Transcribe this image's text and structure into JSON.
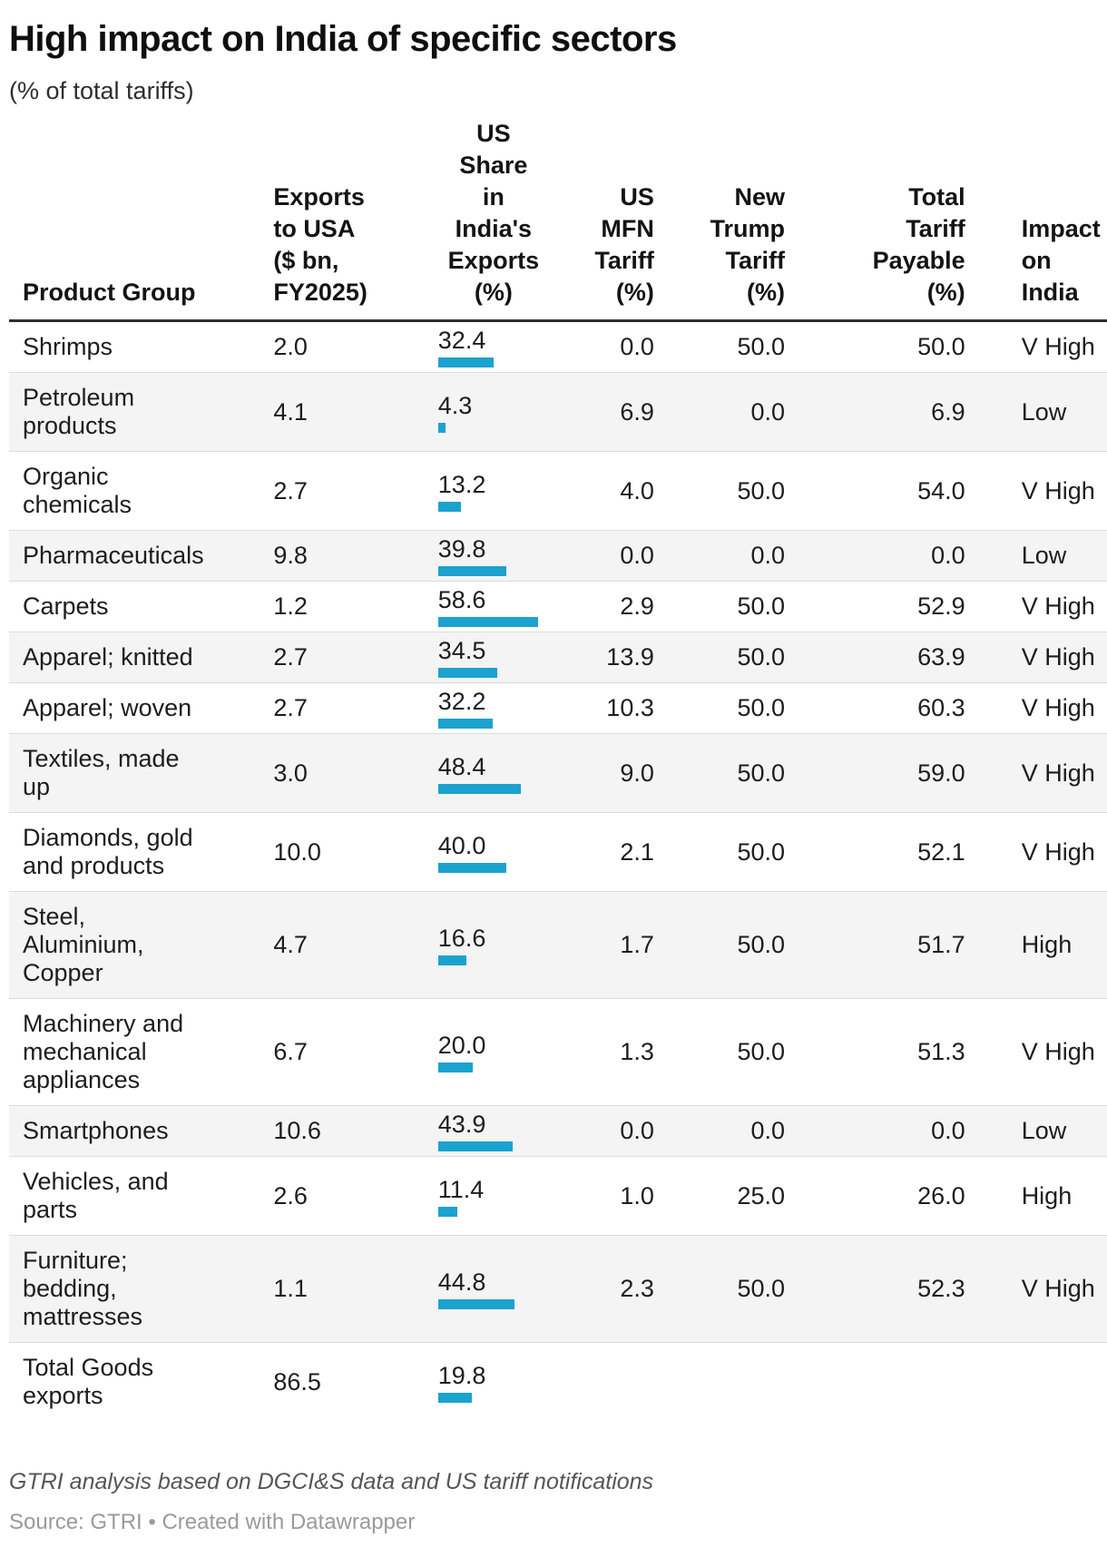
{
  "header": {
    "title": "High impact on India of specific sectors",
    "subtitle": "(% of total tariffs)"
  },
  "chart_data": {
    "type": "table",
    "title": "High impact on India of specific sectors",
    "subtitle": "(% of total tariffs)",
    "bar_column": "us_share",
    "bar_color": "#1ca2cf",
    "bar_axis_max": 58.6,
    "zebra_color": "#f4f4f4",
    "columns": [
      {
        "key": "product",
        "label": "Product Group",
        "align": "left"
      },
      {
        "key": "exports",
        "label": "Exports\nto USA\n($ bn,\nFY2025)",
        "align": "left"
      },
      {
        "key": "us_share",
        "label": "US\nShare\nin\nIndia's\nExports\n(%)",
        "align": "center"
      },
      {
        "key": "mfn",
        "label": "US\nMFN\nTariff\n(%)",
        "align": "right"
      },
      {
        "key": "trump",
        "label": "New\nTrump\nTariff\n(%)",
        "align": "right"
      },
      {
        "key": "total",
        "label": "Total\nTariff\nPayable\n(%)",
        "align": "right"
      },
      {
        "key": "impact",
        "label": "Impact\non\nIndia",
        "align": "left"
      }
    ],
    "rows": [
      {
        "product": "Shrimps",
        "exports": "2.0",
        "us_share": "32.4",
        "mfn": "0.0",
        "trump": "50.0",
        "total": "50.0",
        "impact": "V High"
      },
      {
        "product": "Petroleum\nproducts",
        "exports": "4.1",
        "us_share": "4.3",
        "mfn": "6.9",
        "trump": "0.0",
        "total": "6.9",
        "impact": "Low"
      },
      {
        "product": "Organic\nchemicals",
        "exports": "2.7",
        "us_share": "13.2",
        "mfn": "4.0",
        "trump": "50.0",
        "total": "54.0",
        "impact": "V High"
      },
      {
        "product": "Pharmaceuticals",
        "exports": "9.8",
        "us_share": "39.8",
        "mfn": "0.0",
        "trump": "0.0",
        "total": "0.0",
        "impact": "Low"
      },
      {
        "product": "Carpets",
        "exports": "1.2",
        "us_share": "58.6",
        "mfn": "2.9",
        "trump": "50.0",
        "total": "52.9",
        "impact": "V High"
      },
      {
        "product": "Apparel; knitted",
        "exports": "2.7",
        "us_share": "34.5",
        "mfn": "13.9",
        "trump": "50.0",
        "total": "63.9",
        "impact": "V High"
      },
      {
        "product": "Apparel; woven",
        "exports": "2.7",
        "us_share": "32.2",
        "mfn": "10.3",
        "trump": "50.0",
        "total": "60.3",
        "impact": "V High"
      },
      {
        "product": "Textiles, made\nup",
        "exports": "3.0",
        "us_share": "48.4",
        "mfn": "9.0",
        "trump": "50.0",
        "total": "59.0",
        "impact": "V High"
      },
      {
        "product": "Diamonds, gold\nand products",
        "exports": "10.0",
        "us_share": "40.0",
        "mfn": "2.1",
        "trump": "50.0",
        "total": "52.1",
        "impact": "V High"
      },
      {
        "product": "Steel,\nAluminium,\nCopper",
        "exports": "4.7",
        "us_share": "16.6",
        "mfn": "1.7",
        "trump": "50.0",
        "total": "51.7",
        "impact": "High"
      },
      {
        "product": "Machinery and\nmechanical\nappliances",
        "exports": "6.7",
        "us_share": "20.0",
        "mfn": "1.3",
        "trump": "50.0",
        "total": "51.3",
        "impact": "V High"
      },
      {
        "product": "Smartphones",
        "exports": "10.6",
        "us_share": "43.9",
        "mfn": "0.0",
        "trump": "0.0",
        "total": "0.0",
        "impact": "Low"
      },
      {
        "product": "Vehicles, and\nparts",
        "exports": "2.6",
        "us_share": "11.4",
        "mfn": "1.0",
        "trump": "25.0",
        "total": "26.0",
        "impact": "High"
      },
      {
        "product": "Furniture;\nbedding,\nmattresses",
        "exports": "1.1",
        "us_share": "44.8",
        "mfn": "2.3",
        "trump": "50.0",
        "total": "52.3",
        "impact": "V High"
      },
      {
        "product": "Total Goods\nexports",
        "exports": "86.5",
        "us_share": "19.8",
        "mfn": "",
        "trump": "",
        "total": "",
        "impact": ""
      }
    ]
  },
  "footer": {
    "note": "GTRI analysis based on DGCI&S data and US tariff notifications",
    "source": "Source: GTRI • Created with Datawrapper"
  }
}
